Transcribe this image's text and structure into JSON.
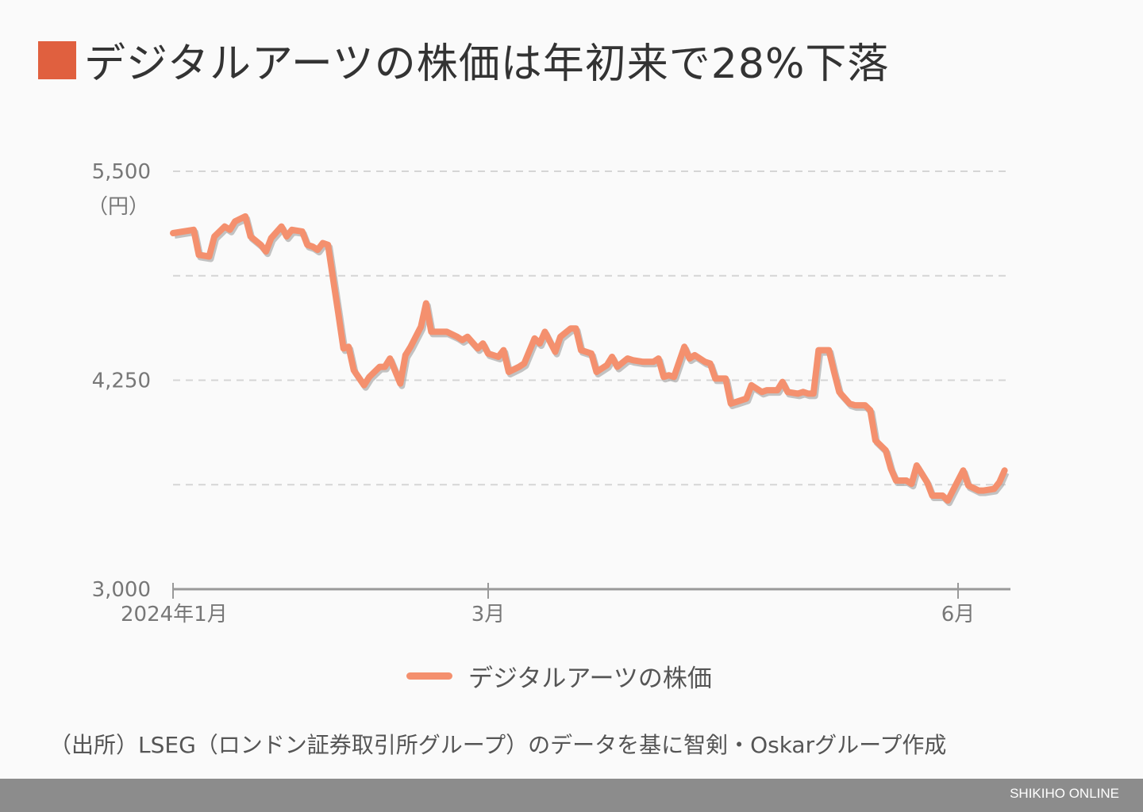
{
  "title": "デジタルアーツの株価は年初来で28%下落",
  "colors": {
    "title_marker": "#E0603F",
    "line": "#F4906E",
    "shadow": "#aaaaaa",
    "footer": "#8c8c8c"
  },
  "chart_data": {
    "type": "line",
    "title": "デジタルアーツの株価は年初来で28%下落",
    "ylabel": "（円）",
    "ylim": [
      3000,
      5500
    ],
    "yticks": [
      3000,
      3625,
      4250,
      4875,
      5500
    ],
    "ytick_labels": [
      "3,000",
      "",
      "4,250",
      "",
      "5,500"
    ],
    "xticks": [
      {
        "date": "2024-01-01",
        "label": "2024年1月"
      },
      {
        "date": "2024-03-01",
        "label": "3月"
      },
      {
        "date": "2024-06-01",
        "label": "6月"
      }
    ],
    "grid": true,
    "legend": "bottom",
    "series": [
      {
        "name": "デジタルアーツの株価",
        "points": [
          [
            "2024-01-01",
            5130
          ],
          [
            "2024-01-05",
            5150
          ],
          [
            "2024-01-06",
            5000
          ],
          [
            "2024-01-08",
            4990
          ],
          [
            "2024-01-09",
            5110
          ],
          [
            "2024-01-11",
            5170
          ],
          [
            "2024-01-12",
            5150
          ],
          [
            "2024-01-13",
            5200
          ],
          [
            "2024-01-15",
            5230
          ],
          [
            "2024-01-16",
            5110
          ],
          [
            "2024-01-18",
            5060
          ],
          [
            "2024-01-19",
            5020
          ],
          [
            "2024-01-20",
            5100
          ],
          [
            "2024-01-22",
            5170
          ],
          [
            "2024-01-23",
            5110
          ],
          [
            "2024-01-24",
            5150
          ],
          [
            "2024-01-26",
            5140
          ],
          [
            "2024-01-27",
            5060
          ],
          [
            "2024-01-28",
            5050
          ],
          [
            "2024-01-29",
            5030
          ],
          [
            "2024-01-30",
            5070
          ],
          [
            "2024-01-31",
            5060
          ],
          [
            "2024-02-02",
            4650
          ],
          [
            "2024-02-03",
            4440
          ],
          [
            "2024-02-04",
            4450
          ],
          [
            "2024-02-05",
            4310
          ],
          [
            "2024-02-07",
            4220
          ],
          [
            "2024-02-08",
            4270
          ],
          [
            "2024-02-10",
            4330
          ],
          [
            "2024-02-11",
            4330
          ],
          [
            "2024-02-12",
            4380
          ],
          [
            "2024-02-14",
            4230
          ],
          [
            "2024-02-15",
            4400
          ],
          [
            "2024-02-16",
            4450
          ],
          [
            "2024-02-18",
            4570
          ],
          [
            "2024-02-19",
            4710
          ],
          [
            "2024-02-20",
            4540
          ],
          [
            "2024-02-22",
            4540
          ],
          [
            "2024-02-23",
            4540
          ],
          [
            "2024-02-25",
            4510
          ],
          [
            "2024-02-26",
            4490
          ],
          [
            "2024-02-27",
            4510
          ],
          [
            "2024-02-29",
            4440
          ],
          [
            "2024-03-01",
            4470
          ],
          [
            "2024-03-02",
            4410
          ],
          [
            "2024-03-04",
            4390
          ],
          [
            "2024-03-05",
            4430
          ],
          [
            "2024-03-06",
            4300
          ],
          [
            "2024-03-08",
            4330
          ],
          [
            "2024-03-09",
            4350
          ],
          [
            "2024-03-11",
            4500
          ],
          [
            "2024-03-12",
            4470
          ],
          [
            "2024-03-13",
            4540
          ],
          [
            "2024-03-15",
            4420
          ],
          [
            "2024-03-16",
            4510
          ],
          [
            "2024-03-18",
            4560
          ],
          [
            "2024-03-19",
            4560
          ],
          [
            "2024-03-20",
            4430
          ],
          [
            "2024-03-22",
            4410
          ],
          [
            "2024-03-23",
            4300
          ],
          [
            "2024-03-25",
            4340
          ],
          [
            "2024-03-26",
            4390
          ],
          [
            "2024-03-27",
            4330
          ],
          [
            "2024-03-29",
            4380
          ],
          [
            "2024-03-30",
            4370
          ],
          [
            "2024-04-01",
            4360
          ],
          [
            "2024-04-03",
            4360
          ],
          [
            "2024-04-04",
            4380
          ],
          [
            "2024-04-05",
            4270
          ],
          [
            "2024-04-06",
            4280
          ],
          [
            "2024-04-07",
            4270
          ],
          [
            "2024-04-09",
            4450
          ],
          [
            "2024-04-10",
            4380
          ],
          [
            "2024-04-11",
            4400
          ],
          [
            "2024-04-13",
            4360
          ],
          [
            "2024-04-14",
            4350
          ],
          [
            "2024-04-15",
            4260
          ],
          [
            "2024-04-17",
            4260
          ],
          [
            "2024-04-18",
            4110
          ],
          [
            "2024-04-19",
            4120
          ],
          [
            "2024-04-21",
            4140
          ],
          [
            "2024-04-22",
            4220
          ],
          [
            "2024-04-24",
            4180
          ],
          [
            "2024-04-25",
            4190
          ],
          [
            "2024-04-27",
            4190
          ],
          [
            "2024-04-28",
            4240
          ],
          [
            "2024-04-29",
            4180
          ],
          [
            "2024-05-01",
            4170
          ],
          [
            "2024-05-02",
            4180
          ],
          [
            "2024-05-03",
            4170
          ],
          [
            "2024-05-04",
            4170
          ],
          [
            "2024-05-05",
            4430
          ],
          [
            "2024-05-07",
            4430
          ],
          [
            "2024-05-08",
            4300
          ],
          [
            "2024-05-09",
            4180
          ],
          [
            "2024-05-11",
            4110
          ],
          [
            "2024-05-12",
            4100
          ],
          [
            "2024-05-14",
            4100
          ],
          [
            "2024-05-15",
            4070
          ],
          [
            "2024-05-16",
            3890
          ],
          [
            "2024-05-18",
            3830
          ],
          [
            "2024-05-19",
            3720
          ],
          [
            "2024-05-20",
            3650
          ],
          [
            "2024-05-22",
            3650
          ],
          [
            "2024-05-23",
            3630
          ],
          [
            "2024-05-24",
            3740
          ],
          [
            "2024-05-26",
            3640
          ],
          [
            "2024-05-27",
            3560
          ],
          [
            "2024-05-29",
            3560
          ],
          [
            "2024-05-30",
            3530
          ],
          [
            "2024-05-31",
            3590
          ],
          [
            "2024-06-02",
            3710
          ],
          [
            "2024-06-03",
            3620
          ],
          [
            "2024-06-05",
            3590
          ],
          [
            "2024-06-06",
            3590
          ],
          [
            "2024-06-08",
            3600
          ],
          [
            "2024-06-09",
            3640
          ],
          [
            "2024-06-10",
            3710
          ]
        ]
      }
    ]
  },
  "legend_label": "デジタルアーツの株価",
  "source": "（出所）LSEG（ロンドン証券取引所グループ）のデータを基に智剣・Oskarグループ作成",
  "footer_brand": "SHIKIHO ONLINE"
}
